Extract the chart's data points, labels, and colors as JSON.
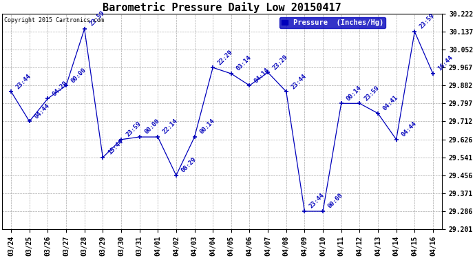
{
  "title": "Barometric Pressure Daily Low 20150417",
  "copyright": "Copyright 2015 Cartronics.com",
  "legend_label": "Pressure  (Inches/Hg)",
  "dates": [
    "03/24",
    "03/25",
    "03/26",
    "03/27",
    "03/28",
    "03/29",
    "03/30",
    "03/31",
    "04/01",
    "04/02",
    "04/03",
    "04/04",
    "04/05",
    "04/06",
    "04/07",
    "04/08",
    "04/09",
    "04/10",
    "04/11",
    "04/12",
    "04/13",
    "04/14",
    "04/15",
    "04/16"
  ],
  "values": [
    29.853,
    29.712,
    29.82,
    29.882,
    30.15,
    29.541,
    29.626,
    29.638,
    29.638,
    29.456,
    29.638,
    29.967,
    29.938,
    29.882,
    29.944,
    29.853,
    29.286,
    29.286,
    29.797,
    29.797,
    29.75,
    29.626,
    30.137,
    29.938
  ],
  "time_labels": [
    "23:44",
    "04:44",
    "04:29",
    "00:00",
    "23:59",
    "15:44",
    "23:59",
    "00:00",
    "22:14",
    "08:29",
    "00:14",
    "22:29",
    "03:14",
    "04:14",
    "23:29",
    "23:44",
    "23:44",
    "00:00",
    "00:14",
    "23:59",
    "04:41",
    "04:44",
    "23:59",
    "16:44"
  ],
  "line_color": "#0000bb",
  "marker_color": "#0000bb",
  "bg_color": "#ffffff",
  "grid_color": "#aaaaaa",
  "label_color": "#0000bb",
  "ylim_min": 29.201,
  "ylim_max": 30.222,
  "yticks": [
    29.201,
    29.286,
    29.371,
    29.456,
    29.541,
    29.626,
    29.712,
    29.797,
    29.882,
    29.967,
    30.052,
    30.137,
    30.222
  ],
  "title_fontsize": 11,
  "tick_fontsize": 7,
  "label_fontsize": 6.5,
  "legend_fontsize": 7.5,
  "figwidth": 6.9,
  "figheight": 3.75,
  "dpi": 100
}
